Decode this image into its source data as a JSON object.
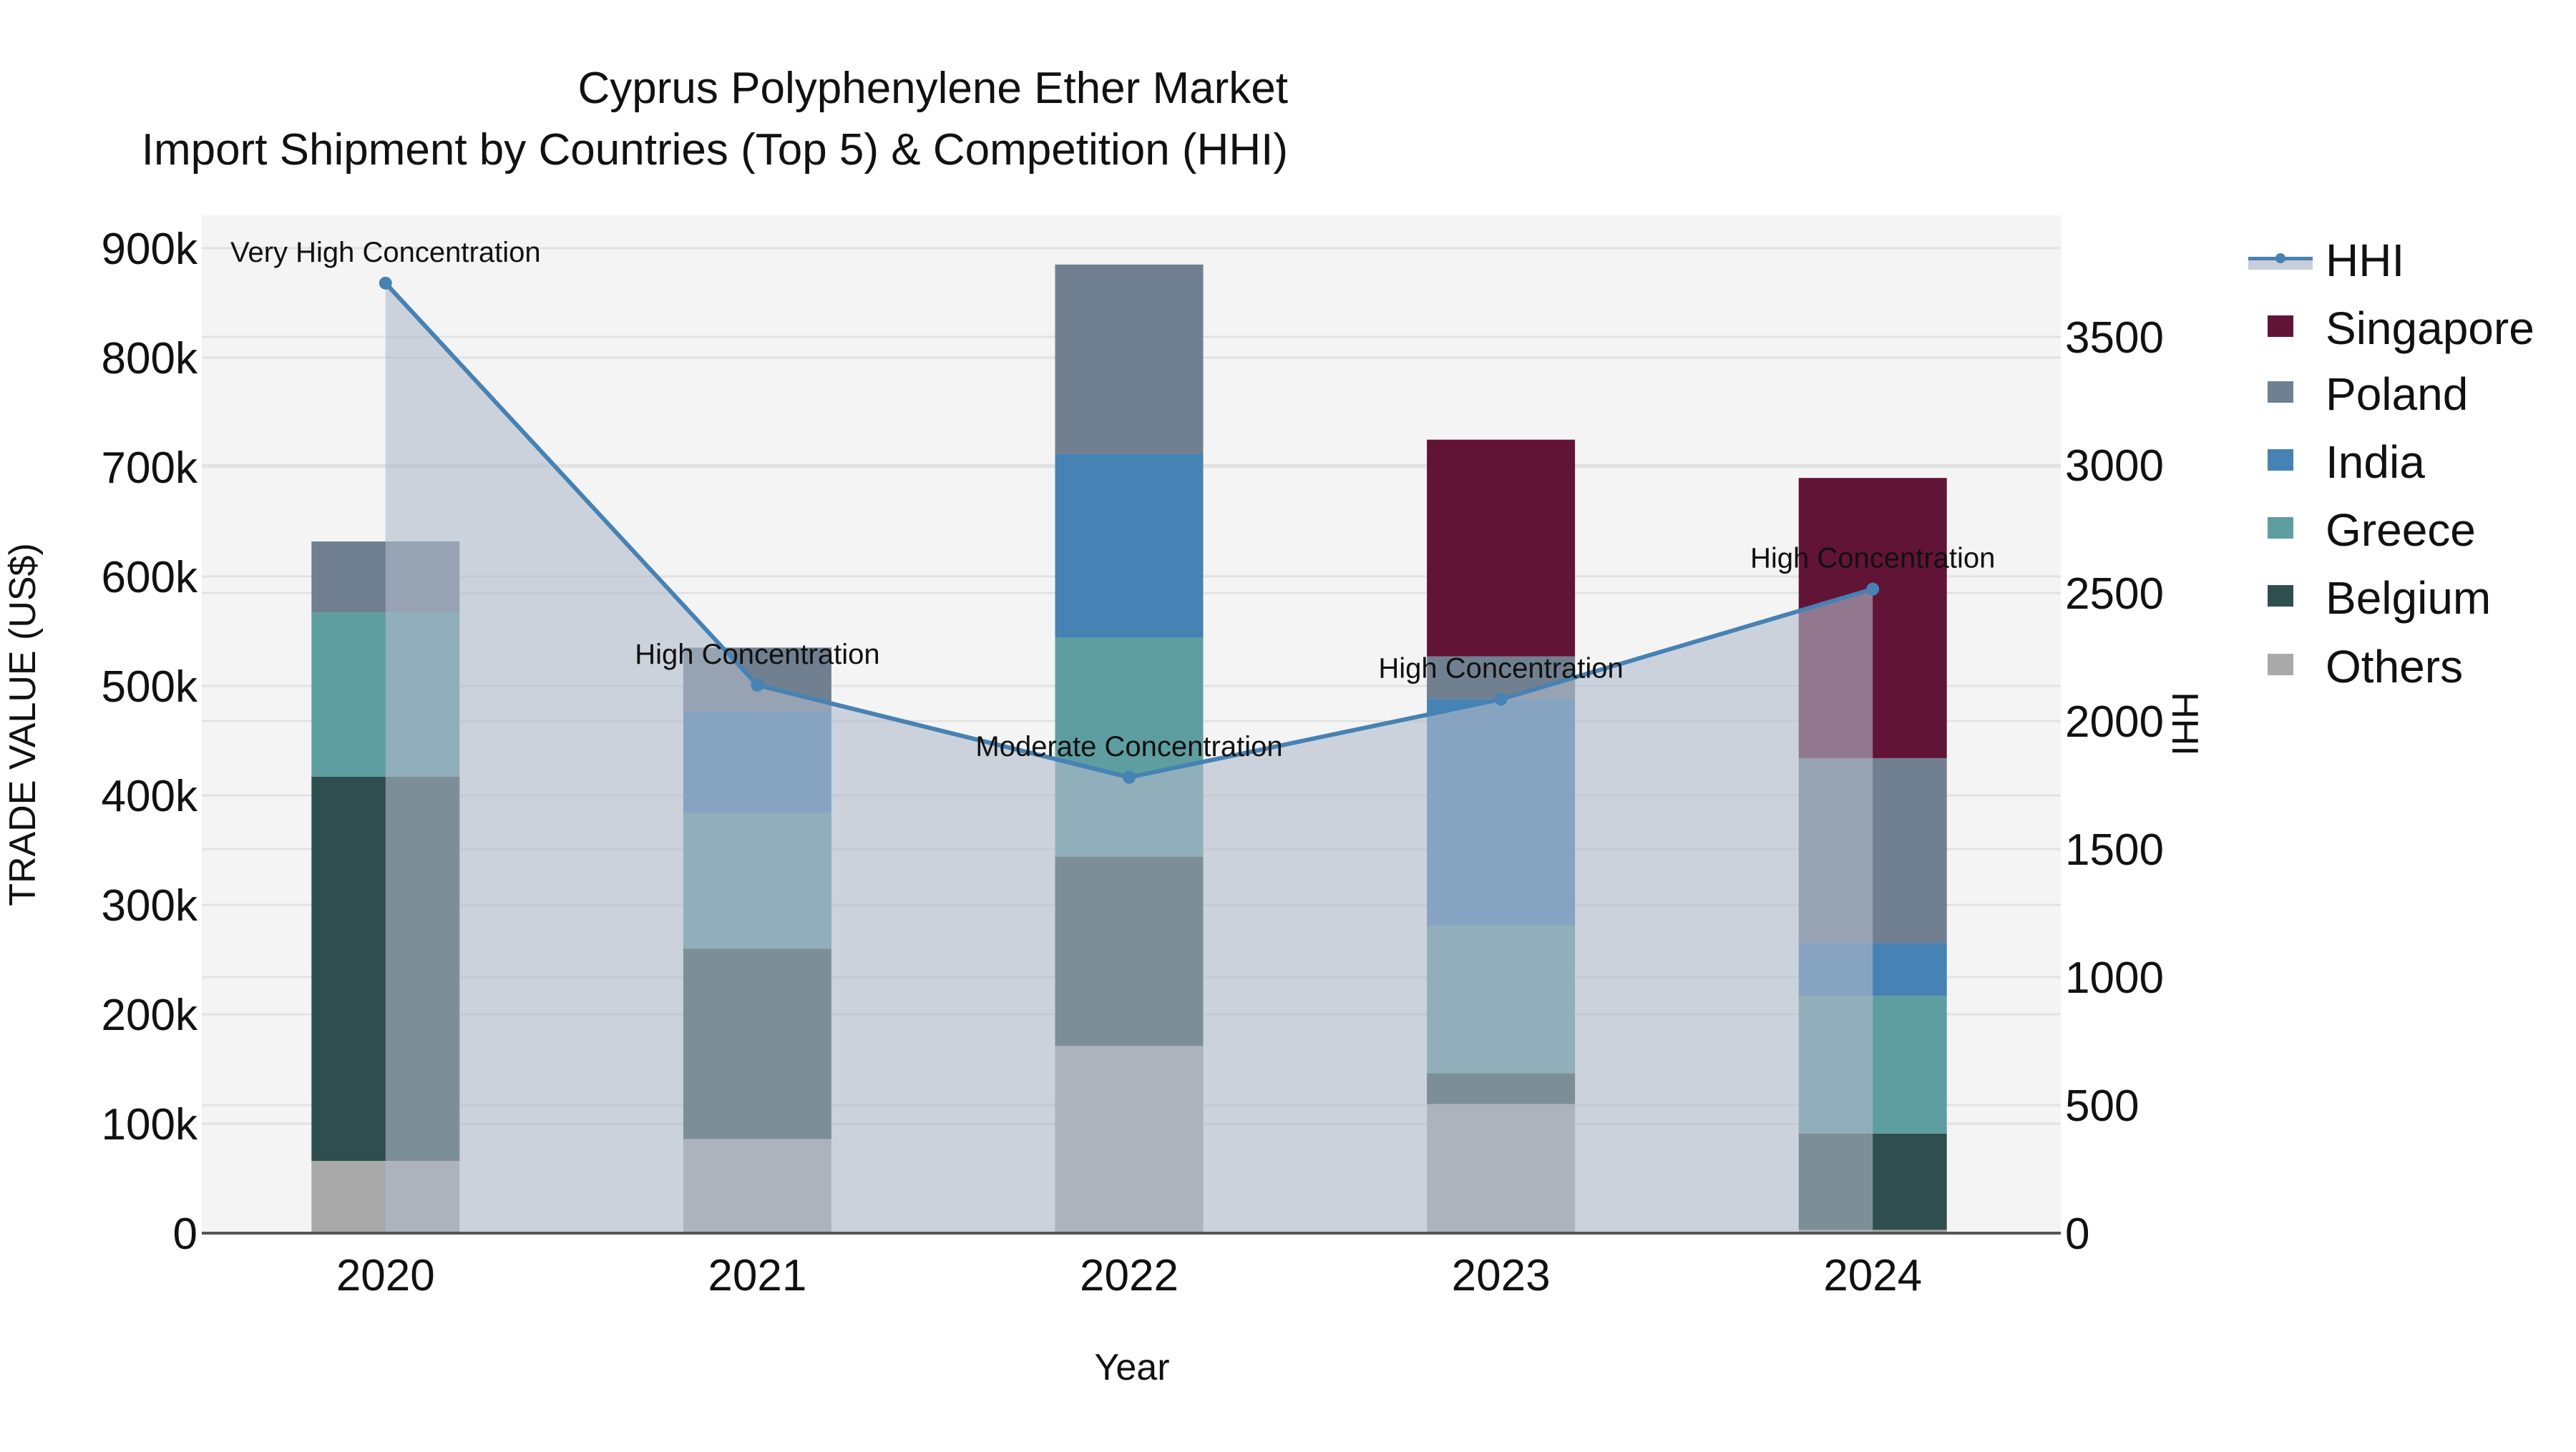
{
  "title": {
    "line1": "Cyprus Polyphenylene Ether Market",
    "line2": "Import Shipment by Countries (Top 5) & Competition (HHI)"
  },
  "axes": {
    "x_title": "Year",
    "y_left_title": "TRADE VALUE (US$)",
    "y_right_title": "HHI"
  },
  "legend": {
    "items": [
      {
        "label": "HHI",
        "type": "line",
        "color": "#4682B4",
        "fill": "#C8CED8"
      },
      {
        "label": "Singapore",
        "type": "bar",
        "color": "#621436"
      },
      {
        "label": "Poland",
        "type": "bar",
        "color": "#708090"
      },
      {
        "label": "India",
        "type": "bar",
        "color": "#4682B4"
      },
      {
        "label": "Greece",
        "type": "bar",
        "color": "#5F9EA0"
      },
      {
        "label": "Belgium",
        "type": "bar",
        "color": "#2F4F4F"
      },
      {
        "label": "Others",
        "type": "bar",
        "color": "#A9A9A9"
      }
    ]
  },
  "colors": {
    "plot_bg": "#F4F4F4",
    "grid": "#E2E2E2",
    "hhi_line": "#4682B4",
    "hhi_fill": "rgba(176,186,203,0.6)"
  },
  "chart_data": {
    "type": "bar",
    "stacked": true,
    "title": "Cyprus Polyphenylene Ether Market — Import Shipment by Countries (Top 5) & Competition (HHI)",
    "xlabel": "Year",
    "ylabel": "TRADE VALUE (US$)",
    "y2label": "HHI",
    "categories": [
      "2020",
      "2021",
      "2022",
      "2023",
      "2024"
    ],
    "ylim": [
      0,
      930000
    ],
    "y_ticks": [
      0,
      100000,
      200000,
      300000,
      400000,
      500000,
      600000,
      700000,
      800000,
      900000
    ],
    "y_tick_labels": [
      "0",
      "100k",
      "200k",
      "300k",
      "400k",
      "500k",
      "600k",
      "700k",
      "800k",
      "900k"
    ],
    "y2lim": [
      0,
      3980
    ],
    "y2_ticks": [
      0,
      500,
      1000,
      1500,
      2000,
      2500,
      3000,
      3500
    ],
    "y2_tick_labels": [
      "0",
      "500",
      "1000",
      "1500",
      "2000",
      "2500",
      "3000",
      "3500"
    ],
    "grid": true,
    "legend_position": "right",
    "series": [
      {
        "name": "Others",
        "color": "#A9A9A9",
        "values": [
          66000,
          86000,
          171000,
          118000,
          3000
        ]
      },
      {
        "name": "Belgium",
        "color": "#2F4F4F",
        "values": [
          351000,
          174000,
          173000,
          28000,
          88000
        ]
      },
      {
        "name": "Greece",
        "color": "#5F9EA0",
        "values": [
          150000,
          124000,
          200000,
          135000,
          126000
        ]
      },
      {
        "name": "India",
        "color": "#4682B4",
        "values": [
          0,
          93000,
          168000,
          207000,
          48000
        ]
      },
      {
        "name": "Poland",
        "color": "#708090",
        "values": [
          65000,
          58000,
          173000,
          39000,
          169000
        ]
      },
      {
        "name": "Singapore",
        "color": "#621436",
        "values": [
          0,
          0,
          0,
          198000,
          256000
        ]
      }
    ],
    "line_series": {
      "name": "HHI",
      "axis": "right",
      "color": "#4682B4",
      "fill": "tozeroy",
      "values": [
        3710,
        2140,
        1780,
        2085,
        2515
      ],
      "annotations": [
        "Very High Concentration",
        "High Concentration",
        "Moderate Concentration",
        "High Concentration",
        "High Concentration"
      ]
    }
  }
}
